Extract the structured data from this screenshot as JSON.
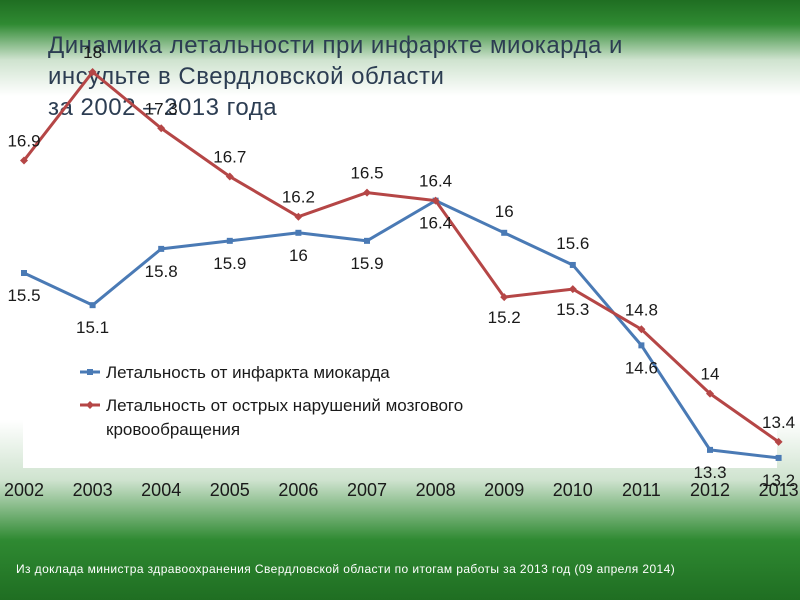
{
  "title": {
    "line1": "Динамика летальности при инфаркте миокарда и",
    "line2": "инсульте в Свердловской области",
    "line3": "за 2002 – 2013 года"
  },
  "footer": "Из доклада министра здравоохранения Свердловской области по итогам работы за 2013 год (09 апреля 2014)",
  "chart_data": {
    "type": "line",
    "categories": [
      "2002",
      "2003",
      "2004",
      "2005",
      "2006",
      "2007",
      "2008",
      "2009",
      "2010",
      "2011",
      "2012",
      "2013"
    ],
    "series": [
      {
        "name": "Летальность от инфаркта миокарда",
        "color": "#4a7ab5",
        "values": [
          15.5,
          15.1,
          15.8,
          15.9,
          16,
          15.9,
          16.4,
          16,
          15.6,
          14.6,
          13.3,
          13.2
        ]
      },
      {
        "name": "Летальность от острых нарушений мозгового кровообращения",
        "color": "#b54646",
        "values": [
          16.9,
          18,
          17.3,
          16.7,
          16.2,
          16.5,
          16.4,
          15.2,
          15.3,
          14.8,
          14,
          13.4
        ]
      }
    ],
    "data_labels": true,
    "legend_position": "inside-bottom-left",
    "grid": false
  }
}
